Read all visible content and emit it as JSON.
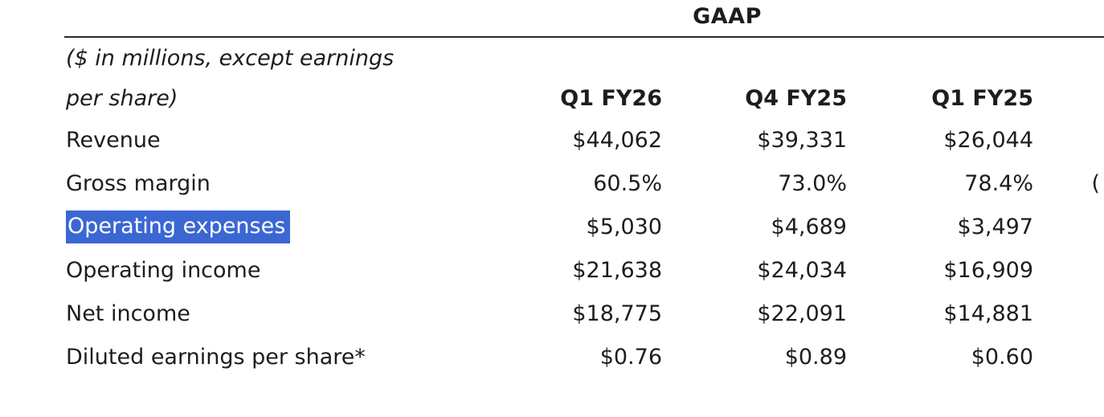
{
  "page": {
    "background": "#ffffff",
    "text_color": "#1d1d1d",
    "selection_color": "#3a67d2",
    "selection_text_color": "#ffffff"
  },
  "table": {
    "group_header": "GAAP",
    "unit_note": {
      "line1": "($ in millions, except earnings",
      "line2": "per share)"
    },
    "columns": [
      "Q1 FY26",
      "Q4 FY25",
      "Q1 FY25"
    ],
    "rows": [
      {
        "label": "Revenue",
        "values": [
          "$44,062",
          "$39,331",
          "$26,044"
        ],
        "overflow": "",
        "highlighted": false
      },
      {
        "label": "Gross margin",
        "values": [
          "60.5%",
          "73.0%",
          "78.4%"
        ],
        "overflow": "(",
        "highlighted": false
      },
      {
        "label": "Operating expenses",
        "values": [
          "$5,030",
          "$4,689",
          "$3,497"
        ],
        "overflow": "",
        "highlighted": true
      },
      {
        "label": "Operating income",
        "values": [
          "$21,638",
          "$24,034",
          "$16,909"
        ],
        "overflow": "",
        "highlighted": false
      },
      {
        "label": "Net income",
        "values": [
          "$18,775",
          "$22,091",
          "$14,881"
        ],
        "overflow": "",
        "highlighted": false
      },
      {
        "label": "Diluted earnings per share*",
        "values": [
          "$0.76",
          "$0.89",
          "$0.60"
        ],
        "overflow": "",
        "highlighted": false
      }
    ]
  }
}
